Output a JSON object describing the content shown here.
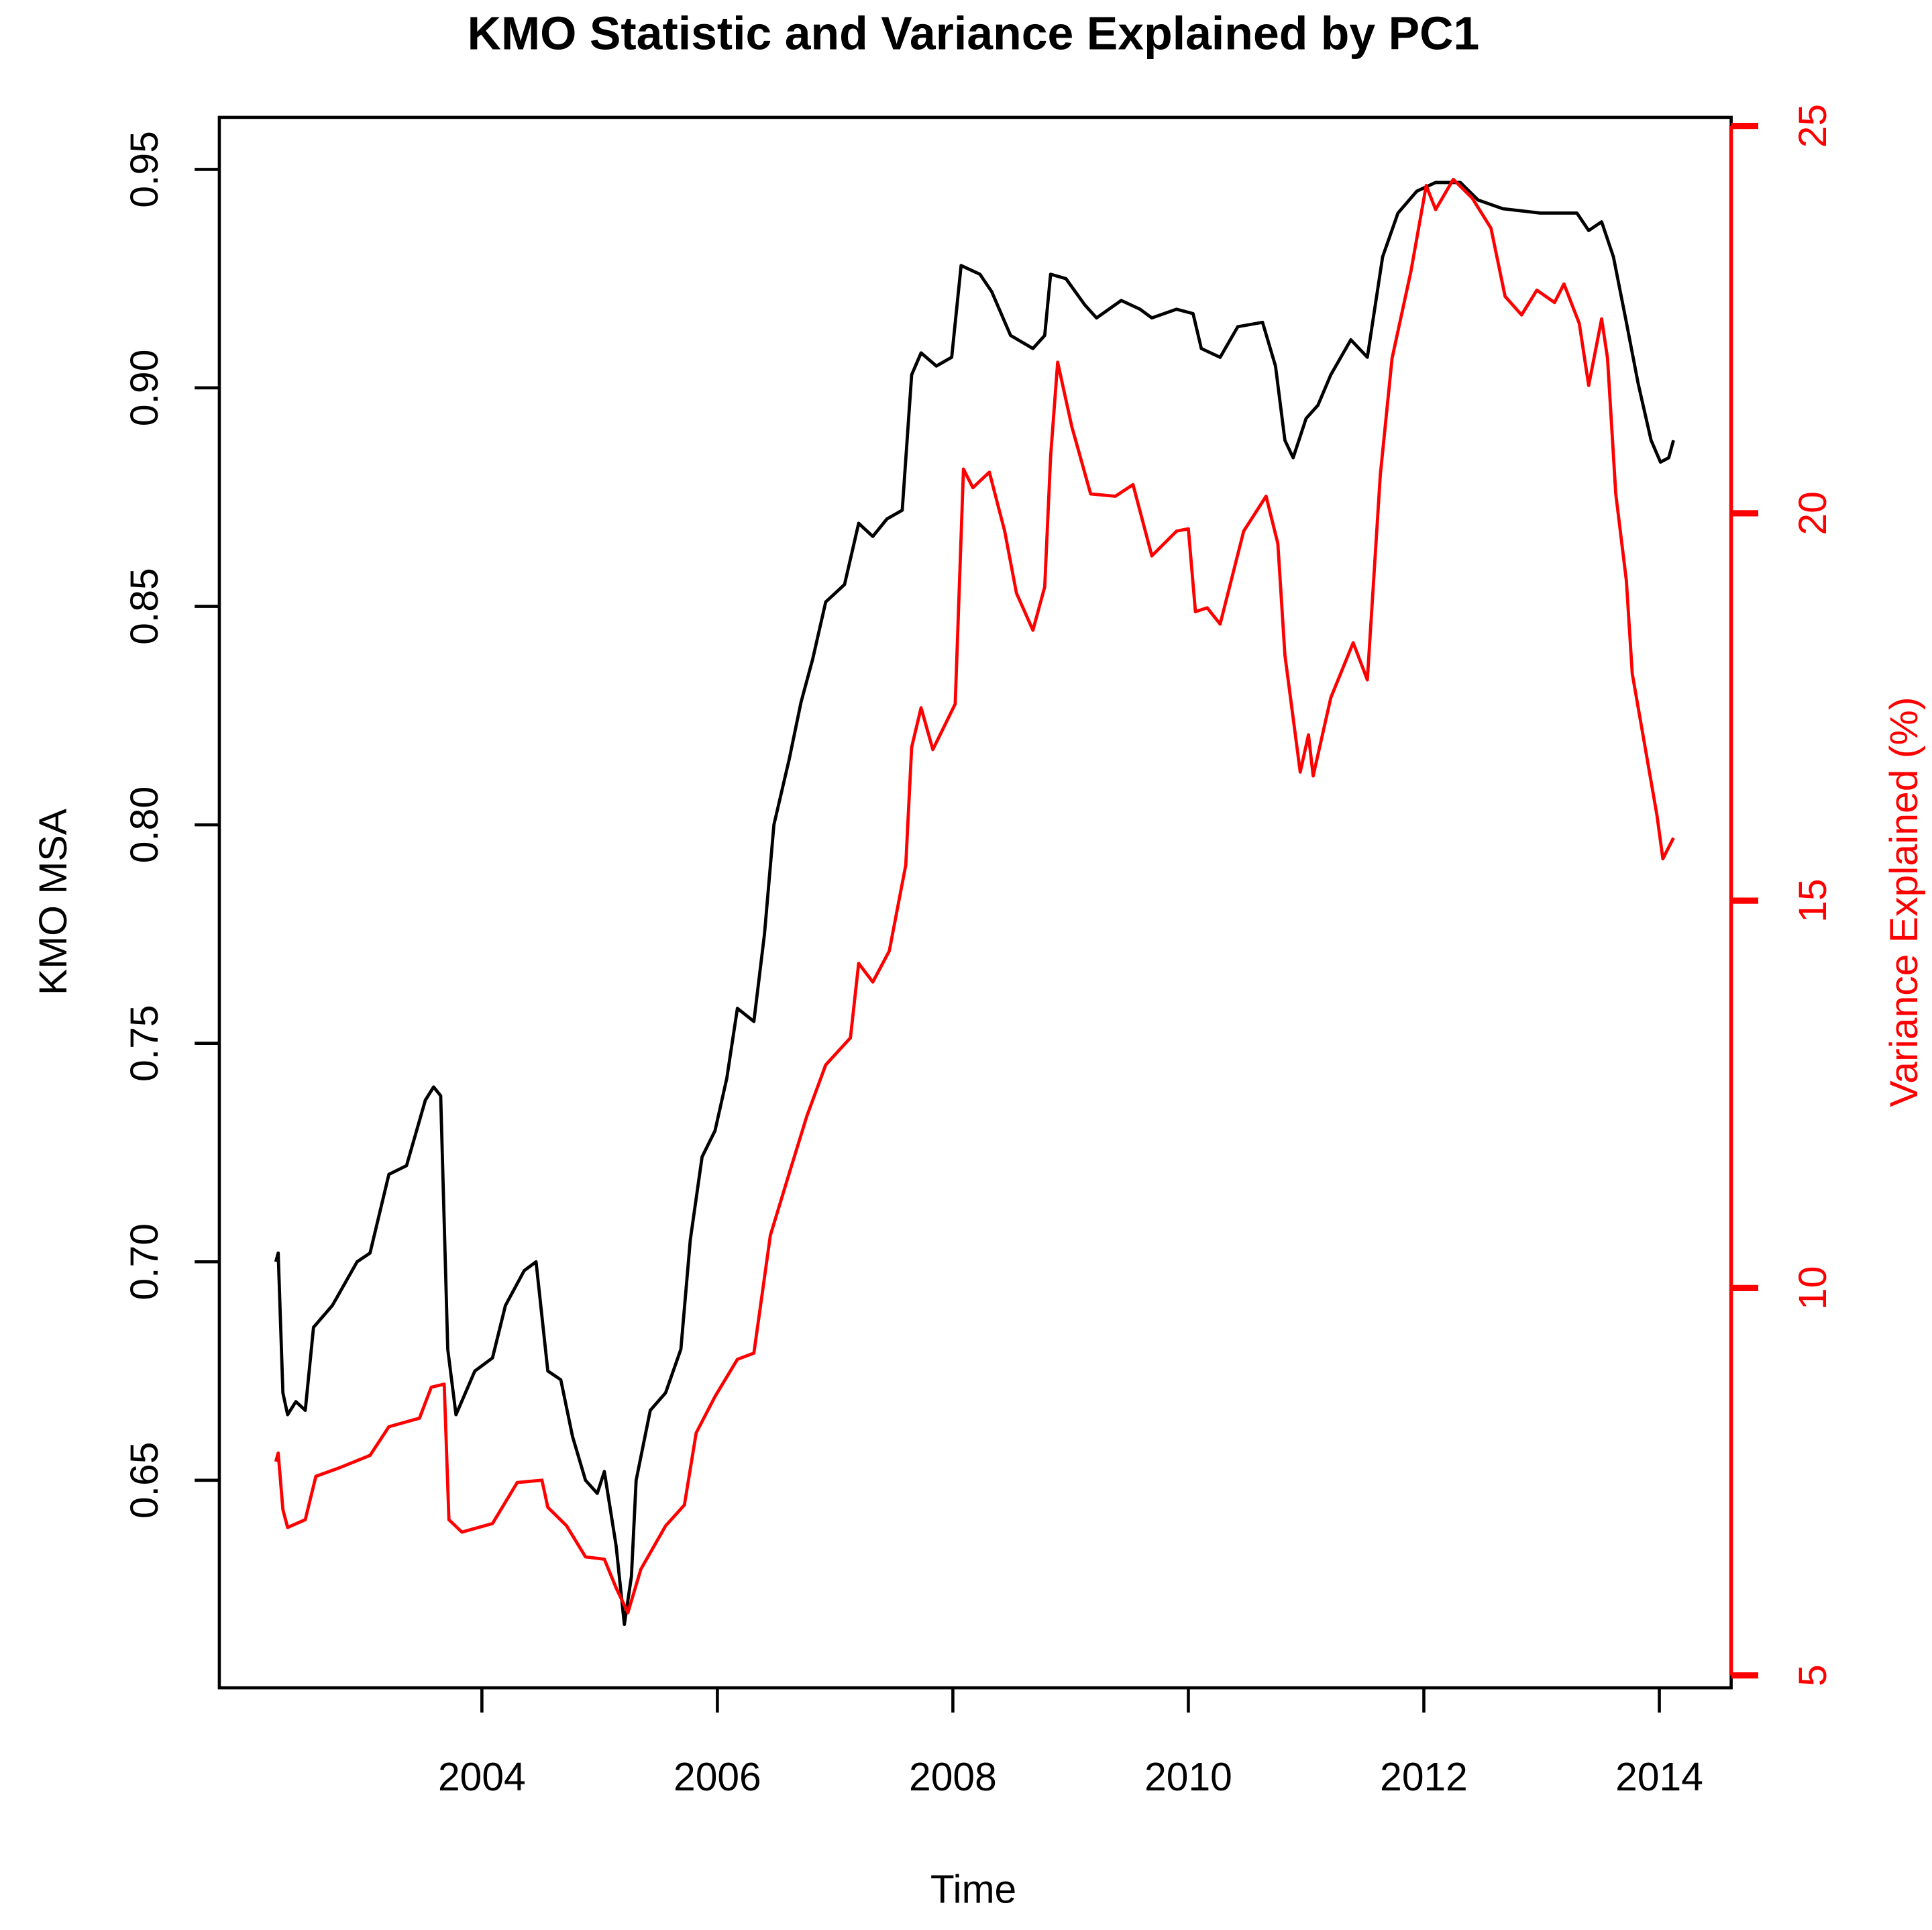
{
  "chart_data": {
    "type": "line",
    "title": "KMO Statistic and Variance Explained by PC1",
    "x_label": "Time",
    "y_label": "KMO MSA",
    "y2_label": "Variance Explained (%)",
    "xlim": [
      2001.77,
      2014.61
    ],
    "ylim": [
      0.6025,
      0.9619
    ],
    "y2lim": [
      4.84,
      25.11
    ],
    "xticks": [
      2004,
      2006,
      2008,
      2010,
      2012,
      2014
    ],
    "yticks": [
      0.65,
      {
        "value": 0.7,
        "label": "0.70"
      },
      0.75,
      {
        "value": 0.8,
        "label": "0.80"
      },
      0.85,
      {
        "value": 0.9,
        "label": "0.90"
      },
      0.95
    ],
    "y2ticks": [
      5,
      10,
      15,
      20,
      25
    ],
    "y2_color": "#ff0000",
    "series": [
      {
        "color": "#000000",
        "axis": "y",
        "x": [
          2002.25,
          2002.27,
          2002.31,
          2002.35,
          2002.42,
          2002.5,
          2002.57,
          2002.73,
          2002.94,
          2003.05,
          2003.21,
          2003.36,
          2003.52,
          2003.59,
          2003.65,
          2003.71,
          2003.78,
          2003.94,
          2004.09,
          2004.2,
          2004.36,
          2004.46,
          2004.56,
          2004.67,
          2004.77,
          2004.88,
          2004.98,
          2005.04,
          2005.14,
          2005.21,
          2005.27,
          2005.31,
          2005.43,
          2005.56,
          2005.69,
          2005.77,
          2005.87,
          2005.98,
          2006.08,
          2006.17,
          2006.31,
          2006.4,
          2006.48,
          2006.61,
          2006.71,
          2006.81,
          2006.92,
          2007.08,
          2007.2,
          2007.32,
          2007.44,
          2007.57,
          2007.65,
          2007.73,
          2007.86,
          2007.99,
          2008.07,
          2008.23,
          2008.33,
          2008.49,
          2008.68,
          2008.78,
          2008.83,
          2008.96,
          2009.12,
          2009.22,
          2009.43,
          2009.59,
          2009.69,
          2009.9,
          2010.04,
          2010.11,
          2010.27,
          2010.42,
          2010.63,
          2010.74,
          2010.82,
          2010.89,
          2011.0,
          2011.1,
          2011.21,
          2011.38,
          2011.52,
          2011.65,
          2011.78,
          2011.94,
          2012.1,
          2012.31,
          2012.46,
          2012.67,
          2012.99,
          2013.3,
          2013.4,
          2013.51,
          2013.61,
          2013.72,
          2013.82,
          2013.93,
          2014.01,
          2014.08,
          2014.12
        ],
        "values": [
          0.7,
          0.702,
          0.67,
          0.665,
          0.668,
          0.666,
          0.685,
          0.69,
          0.7,
          0.702,
          0.72,
          0.722,
          0.737,
          0.74,
          0.738,
          0.68,
          0.665,
          0.675,
          0.678,
          0.69,
          0.698,
          0.7,
          0.675,
          0.673,
          0.66,
          0.65,
          0.647,
          0.652,
          0.635,
          0.617,
          0.628,
          0.65,
          0.666,
          0.67,
          0.68,
          0.705,
          0.724,
          0.73,
          0.742,
          0.758,
          0.755,
          0.775,
          0.8,
          0.815,
          0.828,
          0.838,
          0.851,
          0.855,
          0.869,
          0.866,
          0.87,
          0.872,
          0.903,
          0.908,
          0.905,
          0.907,
          0.928,
          0.926,
          0.922,
          0.912,
          0.909,
          0.912,
          0.926,
          0.925,
          0.919,
          0.916,
          0.92,
          0.918,
          0.916,
          0.918,
          0.917,
          0.909,
          0.907,
          0.914,
          0.915,
          0.905,
          0.888,
          0.884,
          0.893,
          0.896,
          0.903,
          0.911,
          0.907,
          0.93,
          0.94,
          0.945,
          0.947,
          0.947,
          0.943,
          0.941,
          0.94,
          0.94,
          0.936,
          0.938,
          0.93,
          0.915,
          0.901,
          0.888,
          0.883,
          0.884,
          0.888
        ]
      },
      {
        "color": "#ff0000",
        "axis": "y2",
        "x": [
          2002.25,
          2002.27,
          2002.31,
          2002.35,
          2002.5,
          2002.59,
          2002.79,
          2003.05,
          2003.21,
          2003.47,
          2003.57,
          2003.68,
          2003.72,
          2003.83,
          2004.09,
          2004.3,
          2004.51,
          2004.56,
          2004.72,
          2004.88,
          2005.04,
          2005.14,
          2005.24,
          2005.35,
          2005.56,
          2005.72,
          2005.82,
          2005.98,
          2006.17,
          2006.31,
          2006.45,
          2006.61,
          2006.76,
          2006.92,
          2007.13,
          2007.2,
          2007.32,
          2007.46,
          2007.6,
          2007.65,
          2007.73,
          2007.83,
          2008.02,
          2008.09,
          2008.17,
          2008.31,
          2008.44,
          2008.54,
          2008.68,
          2008.78,
          2008.83,
          2008.89,
          2009.01,
          2009.17,
          2009.38,
          2009.53,
          2009.69,
          2009.9,
          2010.0,
          2010.06,
          2010.16,
          2010.27,
          2010.47,
          2010.66,
          2010.76,
          2010.82,
          2010.95,
          2011.02,
          2011.06,
          2011.21,
          2011.4,
          2011.52,
          2011.63,
          2011.73,
          2011.89,
          2012.02,
          2012.1,
          2012.25,
          2012.41,
          2012.57,
          2012.69,
          2012.83,
          2012.96,
          2013.11,
          2013.19,
          2013.32,
          2013.4,
          2013.51,
          2013.56,
          2013.63,
          2013.72,
          2013.77,
          2013.87,
          2013.98,
          2014.03,
          2014.12
        ],
        "values": [
          7.76,
          7.87,
          7.14,
          6.91,
          7.01,
          7.57,
          7.68,
          7.84,
          8.21,
          8.32,
          8.72,
          8.76,
          7.01,
          6.85,
          6.96,
          7.49,
          7.52,
          7.17,
          6.93,
          6.53,
          6.5,
          6.13,
          5.81,
          6.37,
          6.93,
          7.2,
          8.13,
          8.6,
          9.08,
          9.16,
          10.68,
          11.48,
          12.22,
          12.88,
          13.23,
          14.19,
          13.95,
          14.35,
          15.46,
          16.98,
          17.49,
          16.95,
          17.54,
          20.57,
          20.33,
          20.53,
          19.77,
          18.97,
          18.49,
          19.05,
          20.73,
          21.95,
          21.12,
          20.25,
          20.22,
          20.37,
          19.45,
          19.77,
          19.8,
          18.73,
          18.78,
          18.57,
          19.77,
          20.22,
          19.61,
          18.17,
          16.66,
          17.14,
          16.61,
          17.62,
          18.33,
          17.85,
          20.49,
          22.0,
          23.12,
          24.23,
          23.92,
          24.31,
          24.07,
          23.68,
          22.8,
          22.56,
          22.88,
          22.72,
          22.96,
          22.45,
          21.65,
          22.51,
          22.0,
          20.25,
          19.13,
          17.93,
          17.06,
          16.1,
          15.54,
          15.81
        ]
      }
    ]
  }
}
